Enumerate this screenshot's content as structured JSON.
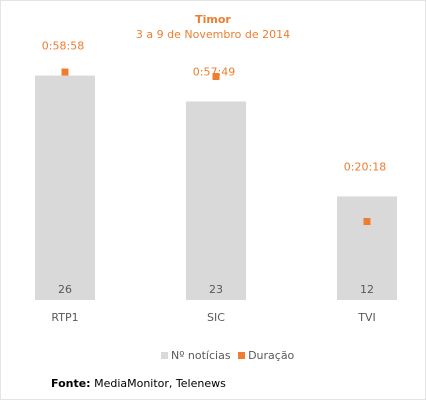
{
  "chart_data": {
    "type": "bar",
    "title": "Timor",
    "subtitle": "3 a 9 de Novembro de 2014",
    "categories": [
      "RTP1",
      "SIC",
      "TVI"
    ],
    "series": [
      {
        "name": "Nº notícias",
        "kind": "bar",
        "values": [
          26,
          23,
          12
        ],
        "color": "#d9d9d9"
      },
      {
        "name": "Duração",
        "kind": "marker",
        "values": [
          "0:58:58",
          "0:57:49",
          "0:20:18"
        ],
        "color": "#ee7d2f"
      }
    ],
    "primary_ylim": [
      0,
      30
    ],
    "secondary_ylim": [
      "0:00:00",
      "1:07:00"
    ],
    "grid": false,
    "legend_position": "bottom"
  },
  "legend": {
    "bar_label": "Nº notícias",
    "marker_label": "Duração"
  },
  "source": {
    "label": "Fonte:",
    "text": "MediaMonitor, Telenews"
  }
}
